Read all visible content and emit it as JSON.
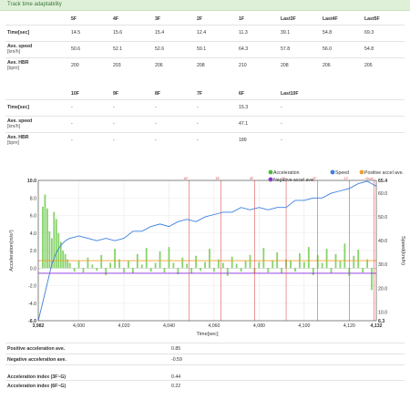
{
  "header": {
    "title": "Track time adaptability"
  },
  "table1": {
    "columns": [
      "5F",
      "4F",
      "3F",
      "2F",
      "1F",
      "Last3F",
      "Last4F",
      "Last5F"
    ],
    "rows": [
      {
        "label": "Time[sec]",
        "unit": "",
        "values": [
          "14.5",
          "15.6",
          "15.4",
          "12.4",
          "11.3",
          "39.1",
          "54.8",
          "69.3"
        ]
      },
      {
        "label": "Ave. speed",
        "unit": "[km/h]",
        "values": [
          "50.6",
          "52.1",
          "52.6",
          "59.1",
          "64.3",
          "57.8",
          "56.0",
          "54.8"
        ]
      },
      {
        "label": "Ave. HBR",
        "unit": "[bpm]",
        "values": [
          "200",
          "203",
          "206",
          "208",
          "210",
          "208",
          "206",
          "205"
        ]
      }
    ]
  },
  "table2": {
    "columns": [
      "10F",
      "9F",
      "8F",
      "7F",
      "6F",
      "Last10F"
    ],
    "rows": [
      {
        "label": "Time[sec]",
        "unit": "",
        "values": [
          "-",
          "-",
          "-",
          "-",
          "15.3",
          "-"
        ]
      },
      {
        "label": "Ave. speed",
        "unit": "[km/h]",
        "values": [
          "-",
          "-",
          "-",
          "-",
          "47.1",
          "-"
        ]
      },
      {
        "label": "Ave. HBR",
        "unit": "[bpm]",
        "values": [
          "-",
          "-",
          "-",
          "-",
          "189",
          "-"
        ]
      }
    ]
  },
  "chart_data": {
    "type": "bar+line",
    "xlabel": "Time[sec]",
    "ylabel_left": "Acceleration(m/s²)",
    "ylabel_right": "Speed(km/h)",
    "xlim": [
      3982,
      4132
    ],
    "ylim_left": [
      -6.0,
      10.0
    ],
    "ylim_right": [
      6.3,
      65.4
    ],
    "x_ticks": [
      "3,982",
      "4,000",
      "4,020",
      "4,040",
      "4,060",
      "4,080",
      "4,100",
      "4,120",
      "4,132"
    ],
    "x_tick_values": [
      3982,
      4000,
      4020,
      4040,
      4060,
      4080,
      4100,
      4120,
      4132
    ],
    "y_left_ticks": [
      "10.0",
      "8.0",
      "6.0",
      "4.0",
      "2.0",
      "0.0",
      "-2.0",
      "-4.0",
      "-6.0"
    ],
    "y_left_tick_values": [
      10,
      8,
      6,
      4,
      2,
      0,
      -2,
      -4,
      -6
    ],
    "y_right_ticks": [
      "65.4",
      "60.0",
      "50.0",
      "40.0",
      "30.0",
      "20.0",
      "10.0",
      "6.3"
    ],
    "y_right_tick_values": [
      65.4,
      60,
      50,
      40,
      30,
      20,
      10,
      6.3
    ],
    "legend": [
      {
        "name": "Acceleration",
        "color": "#4cbb3f"
      },
      {
        "name": "Speed",
        "color": "#3b7fe0"
      },
      {
        "name": "Positive accel ave.",
        "color": "#f0a030"
      },
      {
        "name": "Negative accel ave.",
        "color": "#8a2be2"
      }
    ],
    "legend_placement": "top-right",
    "furlong_markers": {
      "labels": [
        "6F",
        "5F",
        "4F",
        "3F",
        "2F",
        "1F",
        "Goal"
      ],
      "x": [
        4049,
        4063,
        4078,
        4092,
        4106,
        4120,
        4131
      ]
    },
    "positive_accel_ave": 0.85,
    "negative_accel_ave": -0.59,
    "acceleration": {
      "x": [
        3984,
        3985,
        3986,
        3987,
        3988,
        3989,
        3990,
        3991,
        3992,
        3993,
        3994,
        3995,
        3996,
        3998,
        4000,
        4002,
        4004,
        4006,
        4008,
        4010,
        4012,
        4014,
        4016,
        4018,
        4020,
        4022,
        4024,
        4026,
        4028,
        4030,
        4032,
        4034,
        4036,
        4038,
        4040,
        4042,
        4044,
        4046,
        4048,
        4050,
        4052,
        4054,
        4056,
        4058,
        4060,
        4062,
        4064,
        4066,
        4068,
        4070,
        4072,
        4074,
        4076,
        4078,
        4080,
        4082,
        4084,
        4086,
        4088,
        4090,
        4092,
        4094,
        4096,
        4098,
        4100,
        4102,
        4104,
        4106,
        4108,
        4110,
        4112,
        4114,
        4116,
        4118,
        4120,
        4122,
        4124,
        4126,
        4128,
        4130
      ],
      "y": [
        7.0,
        8.4,
        6.8,
        4.2,
        3.4,
        6.4,
        5.6,
        4.0,
        3.0,
        2.0,
        1.6,
        1.0,
        0.6,
        -0.4,
        0.8,
        -0.5,
        1.2,
        0.4,
        -0.3,
        1.5,
        -0.8,
        0.6,
        2.2,
        1.0,
        -0.5,
        0.8,
        -0.6,
        1.6,
        0.4,
        2.3,
        -0.4,
        0.6,
        1.9,
        -0.5,
        2.4,
        0.6,
        -0.7,
        1.2,
        0.5,
        -0.6,
        1.4,
        -0.3,
        0.7,
        2.2,
        -0.4,
        1.0,
        0.6,
        -0.9,
        1.3,
        0.5,
        -0.4,
        0.8,
        1.5,
        -0.6,
        0.7,
        2.3,
        -0.5,
        0.9,
        1.8,
        -0.6,
        1.0,
        0.8,
        -0.4,
        1.7,
        0.7,
        2.4,
        -0.8,
        1.5,
        0.6,
        2.2,
        -0.6,
        1.6,
        0.8,
        2.8,
        -0.9,
        1.4,
        2.1,
        -0.5,
        1.0,
        -2.5
      ]
    },
    "speed": {
      "x": [
        3982,
        3984,
        3986,
        3988,
        3990,
        3992,
        3994,
        3996,
        3998,
        4000,
        4004,
        4008,
        4012,
        4016,
        4020,
        4024,
        4028,
        4032,
        4036,
        4040,
        4044,
        4048,
        4052,
        4056,
        4060,
        4064,
        4068,
        4072,
        4076,
        4080,
        4084,
        4088,
        4092,
        4096,
        4100,
        4104,
        4108,
        4112,
        4116,
        4120,
        4124,
        4128,
        4130,
        4132
      ],
      "y": [
        6.3,
        14,
        22,
        30,
        35,
        38,
        40,
        41,
        41.5,
        42,
        41,
        40,
        41,
        40,
        41,
        44,
        44,
        46,
        47,
        46,
        48,
        49,
        48,
        50,
        51,
        52,
        52,
        54,
        53,
        54,
        53,
        54,
        54,
        57,
        57,
        58,
        58,
        60,
        61,
        62,
        64,
        65,
        64,
        63
      ]
    }
  },
  "summary": [
    {
      "label": "Positive acceleration ave.",
      "value": "0.85"
    },
    {
      "label": "Negative acceleration ave.",
      "value": "-0.59"
    },
    {
      "label": "Acceleration index (3F~G)",
      "value": "0.44"
    },
    {
      "label": "Acceleration index (6F~G)",
      "value": "0.22"
    }
  ]
}
